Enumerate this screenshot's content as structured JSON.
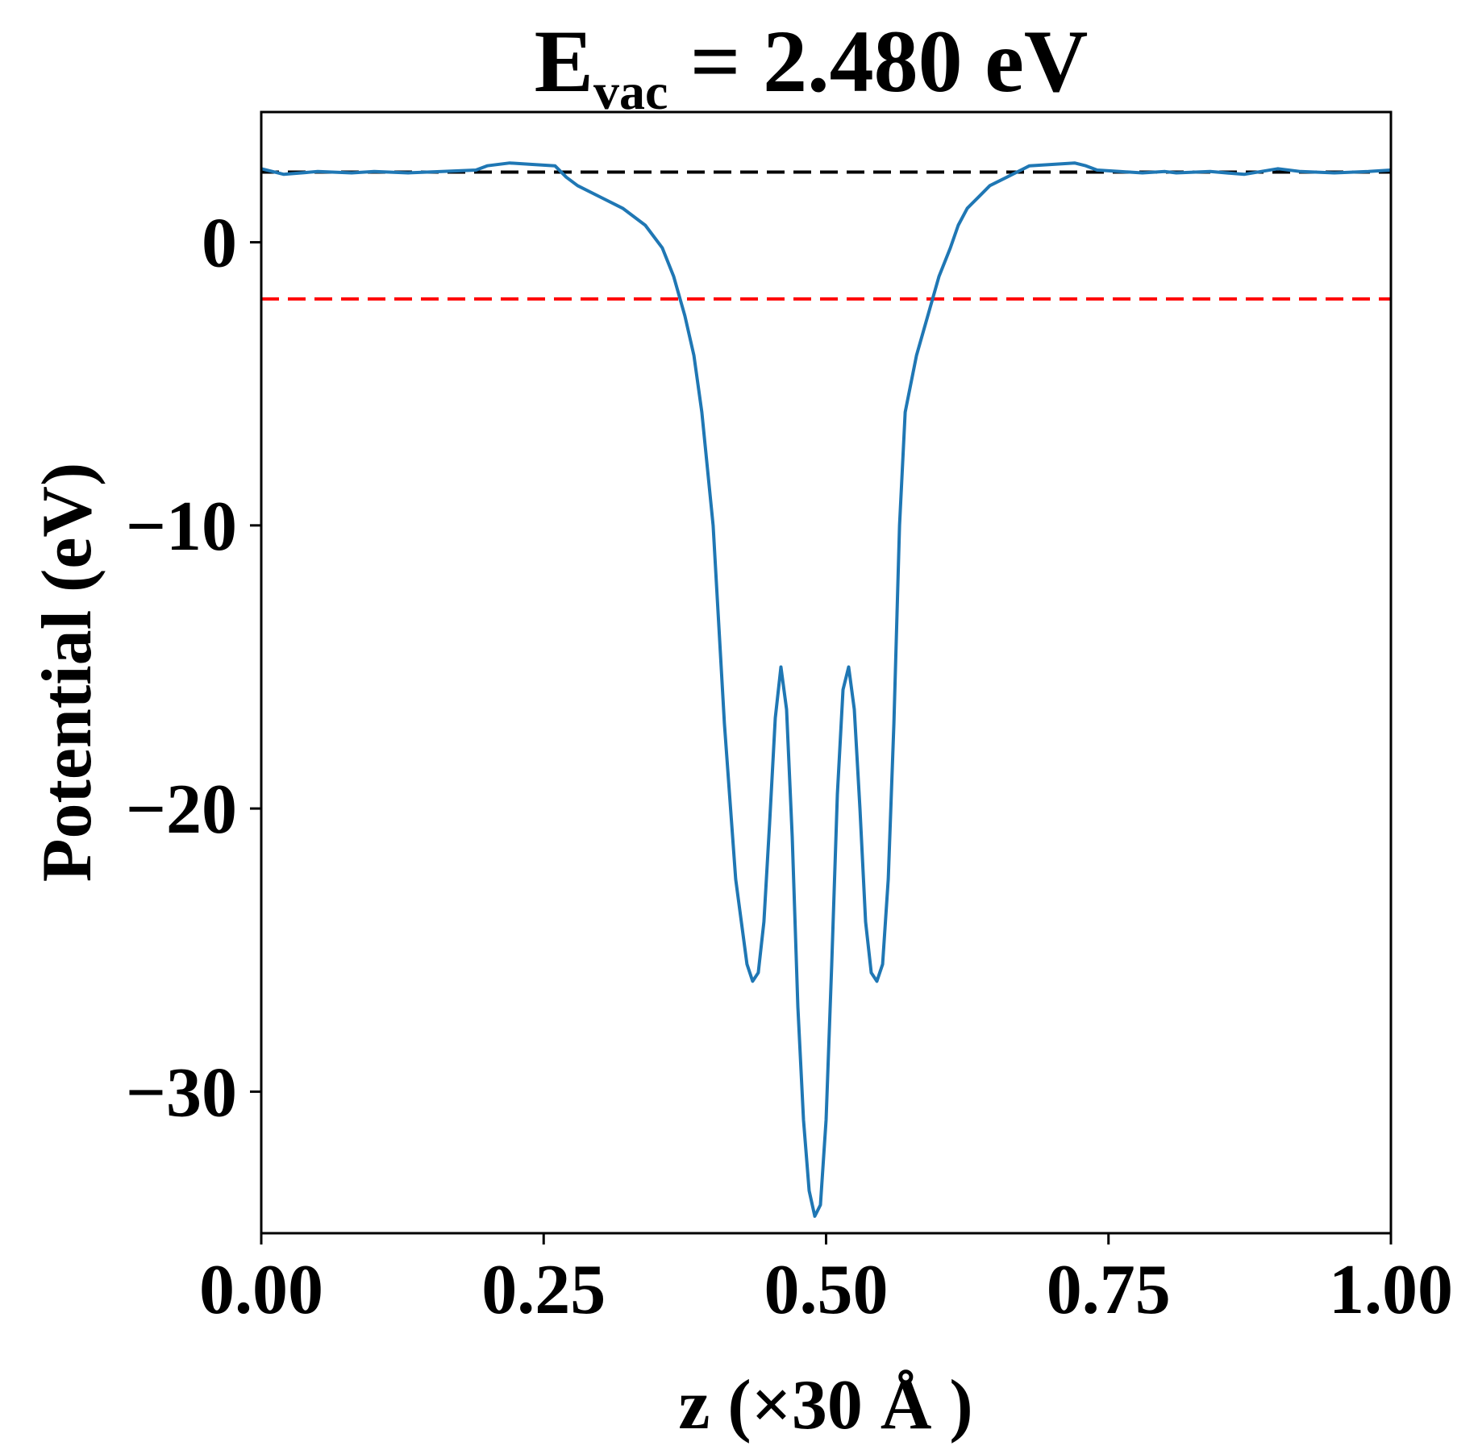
{
  "chart_data": {
    "type": "line",
    "title": {
      "main": "E",
      "subscript": "vac",
      "rest": " = 2.480 eV"
    },
    "xlabel": "z (×30 Å )",
    "ylabel": "Potential (eV)",
    "xlim": [
      0.0,
      1.0
    ],
    "ylim": [
      -35.0,
      4.6
    ],
    "x_ticks": [
      0.0,
      0.25,
      0.5,
      0.75,
      1.0
    ],
    "x_tick_labels": [
      "0.00",
      "0.25",
      "0.50",
      "0.75",
      "1.00"
    ],
    "y_ticks": [
      0,
      -10,
      -20,
      -30
    ],
    "y_tick_labels": [
      "0",
      "−10",
      "−20",
      "−30"
    ],
    "grid": false,
    "reference_lines": [
      {
        "y": 2.48,
        "color": "#000000",
        "style": "dashed"
      },
      {
        "y": -2.0,
        "color": "#ff0000",
        "style": "dashed"
      }
    ],
    "series": [
      {
        "color": "#1f77b4",
        "x": [
          0.0,
          0.02,
          0.05,
          0.08,
          0.1,
          0.13,
          0.16,
          0.19,
          0.2,
          0.22,
          0.24,
          0.26,
          0.27,
          0.28,
          0.3,
          0.32,
          0.34,
          0.355,
          0.365,
          0.375,
          0.383,
          0.39,
          0.4,
          0.41,
          0.42,
          0.43,
          0.435,
          0.44,
          0.445,
          0.45,
          0.455,
          0.46,
          0.465,
          0.47,
          0.475,
          0.48,
          0.485,
          0.49,
          0.495,
          0.5,
          0.505,
          0.51,
          0.515,
          0.52,
          0.525,
          0.53,
          0.535,
          0.54,
          0.545,
          0.55,
          0.555,
          0.56,
          0.565,
          0.57,
          0.58,
          0.59,
          0.6,
          0.61,
          0.617,
          0.625,
          0.635,
          0.645,
          0.66,
          0.68,
          0.7,
          0.72,
          0.73,
          0.74,
          0.76,
          0.78,
          0.8,
          0.81,
          0.84,
          0.87,
          0.9,
          0.92,
          0.95,
          0.98,
          1.0
        ],
        "y": [
          2.6,
          2.4,
          2.5,
          2.45,
          2.5,
          2.45,
          2.5,
          2.55,
          2.7,
          2.8,
          2.75,
          2.7,
          2.3,
          2.0,
          1.6,
          1.2,
          0.6,
          -0.2,
          -1.2,
          -2.6,
          -4.0,
          -6.0,
          -10.0,
          -17.0,
          -22.5,
          -25.5,
          -26.1,
          -25.8,
          -24.0,
          -20.5,
          -16.8,
          -15.0,
          -16.5,
          -21.0,
          -27.0,
          -31.0,
          -33.5,
          -34.4,
          -34.0,
          -31.0,
          -25.5,
          -19.5,
          -15.8,
          -15.0,
          -16.5,
          -20.0,
          -24.0,
          -25.8,
          -26.1,
          -25.5,
          -22.5,
          -17.0,
          -10.0,
          -6.0,
          -4.0,
          -2.6,
          -1.2,
          -0.2,
          0.6,
          1.2,
          1.6,
          2.0,
          2.3,
          2.7,
          2.75,
          2.8,
          2.7,
          2.55,
          2.5,
          2.45,
          2.5,
          2.45,
          2.5,
          2.4,
          2.6,
          2.5,
          2.45,
          2.5,
          2.55
        ]
      }
    ]
  }
}
